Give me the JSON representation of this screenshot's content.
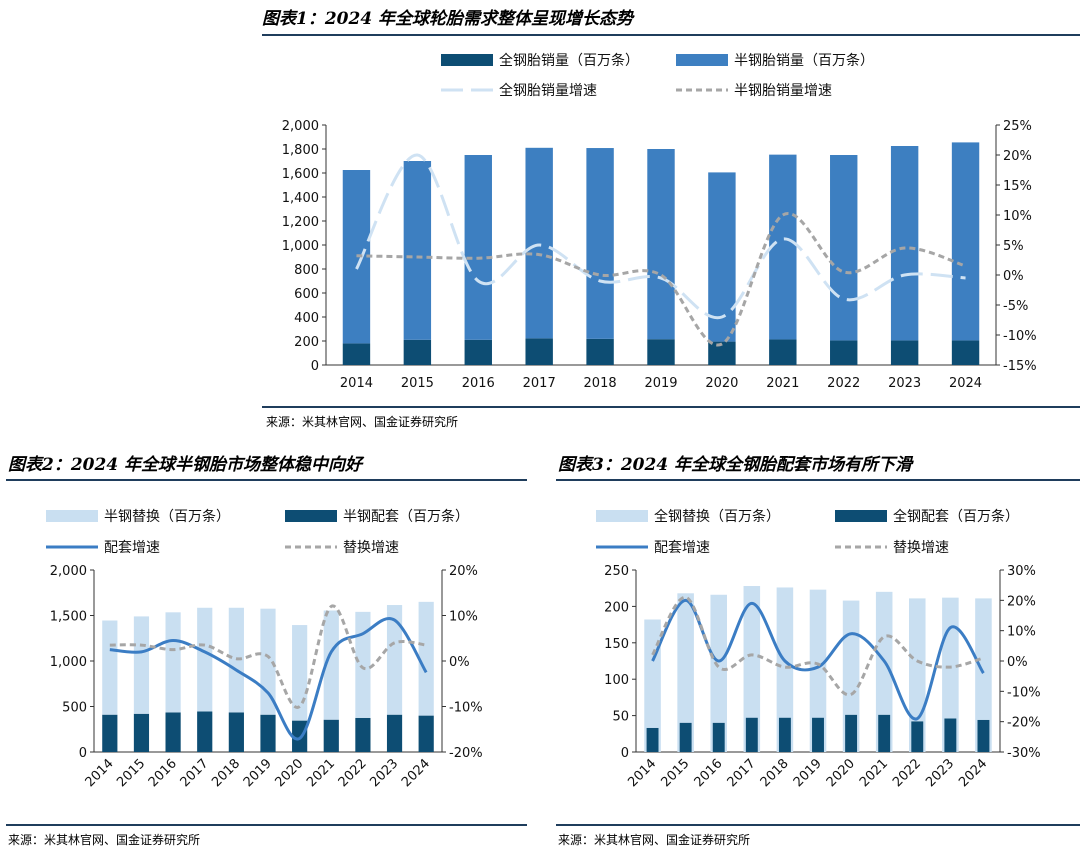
{
  "colors": {
    "navy": "#0d4d73",
    "blue": "#3d7fc1",
    "lightblue": "#c9dff1",
    "dashlight": "#cfe2f3",
    "gray": "#a6a6a6",
    "line": "#3b7dc4",
    "rule": "#1f3d5c"
  },
  "chart1": {
    "title": "图表1：2024 年全球轮胎需求整体呈现增长态势",
    "source": "来源：米其林官网、国金证券研究所",
    "legend": [
      "全钢胎销量（百万条）",
      "半钢胎销量（百万条）",
      "全钢胎销量增速",
      "半钢胎销量增速"
    ],
    "left_ticks": [
      "0",
      "200",
      "400",
      "600",
      "800",
      "1,000",
      "1,200",
      "1,400",
      "1,600",
      "1,800",
      "2,000"
    ],
    "right_ticks": [
      "-15%",
      "-10%",
      "-5%",
      "0%",
      "5%",
      "10%",
      "15%",
      "20%",
      "25%"
    ]
  },
  "chart2": {
    "title": "图表2：2024 年全球半钢胎市场整体稳中向好",
    "source": "来源：米其林官网、国金证券研究所",
    "legend": [
      "半钢替换（百万条）",
      "半钢配套（百万条）",
      "配套增速",
      "替换增速"
    ],
    "left_ticks": [
      "0",
      "500",
      "1,000",
      "1,500",
      "2,000"
    ],
    "right_ticks": [
      "-20%",
      "-10%",
      "0%",
      "10%",
      "20%"
    ]
  },
  "chart3": {
    "title": "图表3：2024 年全球全钢胎配套市场有所下滑",
    "source": "来源：米其林官网、国金证券研究所",
    "legend": [
      "全钢替换（百万条）",
      "全钢配套（百万条）",
      "配套增速",
      "替换增速"
    ],
    "left_ticks": [
      "0",
      "50",
      "100",
      "150",
      "200",
      "250"
    ],
    "right_ticks": [
      "-30%",
      "-20%",
      "-10%",
      "0%",
      "10%",
      "20%",
      "30%"
    ]
  },
  "chart_data": [
    {
      "type": "bar",
      "stacked": true,
      "categories": [
        "2014",
        "2015",
        "2016",
        "2017",
        "2018",
        "2019",
        "2020",
        "2021",
        "2022",
        "2023",
        "2024"
      ],
      "series": [
        {
          "name": "全钢胎销量（百万条）",
          "axis": "left",
          "values": [
            180,
            210,
            210,
            222,
            218,
            215,
            195,
            213,
            205,
            205,
            205
          ]
        },
        {
          "name": "半钢胎销量（百万条）",
          "axis": "left",
          "values": [
            1445,
            1490,
            1540,
            1588,
            1590,
            1585,
            1410,
            1540,
            1545,
            1620,
            1650
          ]
        },
        {
          "name": "全钢胎销量增速",
          "type": "line",
          "axis": "right",
          "values": [
            1,
            20,
            -1,
            5,
            -1,
            -0.5,
            -7,
            6,
            -4,
            0,
            -0.5
          ]
        },
        {
          "name": "半钢胎销量增速",
          "type": "line",
          "axis": "right",
          "values": [
            3.2,
            3,
            2.8,
            3.4,
            0,
            0,
            -11.5,
            10,
            0.5,
            4.5,
            1.5
          ]
        }
      ],
      "ylim": [
        0,
        2000
      ],
      "y2lim": [
        -15,
        25
      ],
      "legend": "top",
      "grid": false
    },
    {
      "type": "bar",
      "stacked": true,
      "categories": [
        "2014",
        "2015",
        "2016",
        "2017",
        "2018",
        "2019",
        "2020",
        "2021",
        "2022",
        "2023",
        "2024"
      ],
      "series": [
        {
          "name": "半钢配套（百万条）",
          "axis": "left",
          "values": [
            410,
            420,
            435,
            445,
            435,
            410,
            345,
            355,
            375,
            410,
            400
          ]
        },
        {
          "name": "半钢替换（百万条）",
          "axis": "left",
          "values": [
            1035,
            1070,
            1100,
            1140,
            1150,
            1165,
            1050,
            1200,
            1165,
            1205,
            1250
          ]
        },
        {
          "name": "配套增速",
          "type": "line",
          "axis": "right",
          "values": [
            2.5,
            2,
            4.5,
            2,
            -2,
            -7,
            -17,
            2,
            6,
            9,
            -2.5
          ]
        },
        {
          "name": "替换增速",
          "type": "line",
          "axis": "right",
          "values": [
            3.5,
            3.5,
            2.5,
            3.5,
            0.5,
            1,
            -10,
            12,
            -1.5,
            4,
            3.5
          ]
        }
      ],
      "ylim": [
        0,
        2000
      ],
      "y2lim": [
        -20,
        20
      ],
      "legend": "top",
      "grid": false
    },
    {
      "type": "bar",
      "stacked": false,
      "categories": [
        "2014",
        "2015",
        "2016",
        "2017",
        "2018",
        "2019",
        "2020",
        "2021",
        "2022",
        "2023",
        "2024"
      ],
      "series": [
        {
          "name": "全钢替换（百万条）",
          "axis": "left",
          "values": [
            182,
            218,
            216,
            228,
            226,
            223,
            208,
            220,
            211,
            212,
            211
          ]
        },
        {
          "name": "全钢配套（百万条）",
          "axis": "left",
          "values": [
            33,
            40,
            40,
            47,
            47,
            47,
            51,
            51,
            42,
            46,
            44
          ]
        },
        {
          "name": "配套增速",
          "type": "line",
          "axis": "right",
          "values": [
            0,
            20,
            0,
            19,
            0,
            -2,
            9,
            0,
            -19,
            11,
            -4
          ]
        },
        {
          "name": "替换增速",
          "type": "line",
          "axis": "right",
          "values": [
            2,
            21,
            -2,
            2,
            -2,
            -1,
            -11,
            8,
            0,
            -2,
            1
          ]
        }
      ],
      "ylim": [
        0,
        250
      ],
      "y2lim": [
        -30,
        30
      ],
      "legend": "top",
      "grid": false
    }
  ]
}
